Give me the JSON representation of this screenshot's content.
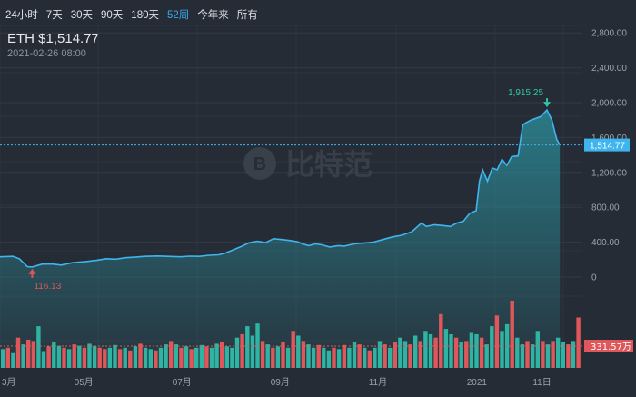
{
  "tabs": [
    {
      "label": "24小时",
      "active": false
    },
    {
      "label": "7天",
      "active": false
    },
    {
      "label": "30天",
      "active": false
    },
    {
      "label": "90天",
      "active": false
    },
    {
      "label": "180天",
      "active": false
    },
    {
      "label": "52周",
      "active": true
    },
    {
      "label": "今年来",
      "active": false
    },
    {
      "label": "所有",
      "active": false
    }
  ],
  "header": {
    "symbol": "ETH $1,514.77",
    "timestamp": "2021-02-26 08:00"
  },
  "watermark": {
    "text": "比特范",
    "icon": "bitcoin-logo-icon"
  },
  "colors": {
    "background": "#262c35",
    "line": "#3fb5f0",
    "area": "#2a8a98",
    "volume_up": "#2fb3a3",
    "volume_down": "#e0575b",
    "current_price_badge": "#3fb5f0",
    "current_volume_badge": "#e0575b",
    "max_annotation": "#2fc7a6",
    "min_annotation": "#e0575b"
  },
  "chart_data": {
    "type": "area",
    "y_ticks": [
      "2,800.00",
      "2,400.00",
      "2,000.00",
      "1,600.00",
      "1,200.00",
      "800.00",
      "400.00",
      "0"
    ],
    "ylim": [
      -400,
      2800
    ],
    "x_ticks": [
      {
        "label": "3月",
        "day": 0
      },
      {
        "label": "05月",
        "day": 45
      },
      {
        "label": "07月",
        "day": 106
      },
      {
        "label": "09月",
        "day": 167
      },
      {
        "label": "11月",
        "day": 228
      },
      {
        "label": "2021",
        "day": 289
      },
      {
        "label": "11日",
        "day": 330
      }
    ],
    "x_range": [
      0,
      362
    ],
    "price_points": [
      [
        0,
        232
      ],
      [
        8,
        238
      ],
      [
        12,
        210
      ],
      [
        17,
        120
      ],
      [
        20,
        116.13
      ],
      [
        26,
        148
      ],
      [
        32,
        150
      ],
      [
        38,
        138
      ],
      [
        45,
        165
      ],
      [
        52,
        175
      ],
      [
        60,
        192
      ],
      [
        66,
        210
      ],
      [
        72,
        205
      ],
      [
        78,
        222
      ],
      [
        84,
        228
      ],
      [
        90,
        238
      ],
      [
        98,
        242
      ],
      [
        106,
        236
      ],
      [
        112,
        232
      ],
      [
        118,
        240
      ],
      [
        124,
        238
      ],
      [
        130,
        250
      ],
      [
        136,
        255
      ],
      [
        140,
        275
      ],
      [
        146,
        320
      ],
      [
        150,
        350
      ],
      [
        155,
        395
      ],
      [
        160,
        410
      ],
      [
        165,
        395
      ],
      [
        170,
        440
      ],
      [
        175,
        430
      ],
      [
        180,
        420
      ],
      [
        185,
        405
      ],
      [
        188,
        380
      ],
      [
        192,
        360
      ],
      [
        196,
        380
      ],
      [
        200,
        370
      ],
      [
        205,
        345
      ],
      [
        210,
        360
      ],
      [
        214,
        355
      ],
      [
        220,
        380
      ],
      [
        226,
        390
      ],
      [
        232,
        400
      ],
      [
        238,
        430
      ],
      [
        244,
        460
      ],
      [
        250,
        480
      ],
      [
        256,
        520
      ],
      [
        262,
        620
      ],
      [
        265,
        580
      ],
      [
        270,
        600
      ],
      [
        276,
        590
      ],
      [
        280,
        580
      ],
      [
        284,
        620
      ],
      [
        288,
        640
      ],
      [
        292,
        730
      ],
      [
        296,
        760
      ],
      [
        298,
        1100
      ],
      [
        300,
        1230
      ],
      [
        303,
        1100
      ],
      [
        306,
        1250
      ],
      [
        309,
        1230
      ],
      [
        312,
        1350
      ],
      [
        315,
        1280
      ],
      [
        318,
        1380
      ],
      [
        322,
        1390
      ],
      [
        325,
        1750
      ],
      [
        330,
        1800
      ],
      [
        336,
        1840
      ],
      [
        340,
        1915.25
      ],
      [
        343,
        1800
      ],
      [
        346,
        1580
      ],
      [
        348,
        1514.77
      ]
    ],
    "volume_bars": [
      [
        0.28,
        1
      ],
      [
        0.3,
        0
      ],
      [
        0.22,
        1
      ],
      [
        0.45,
        0
      ],
      [
        0.35,
        1
      ],
      [
        0.42,
        0
      ],
      [
        0.4,
        0
      ],
      [
        0.62,
        1
      ],
      [
        0.25,
        1
      ],
      [
        0.32,
        0
      ],
      [
        0.38,
        1
      ],
      [
        0.33,
        1
      ],
      [
        0.3,
        0
      ],
      [
        0.28,
        1
      ],
      [
        0.35,
        0
      ],
      [
        0.33,
        1
      ],
      [
        0.3,
        0
      ],
      [
        0.36,
        1
      ],
      [
        0.32,
        1
      ],
      [
        0.3,
        0
      ],
      [
        0.28,
        0
      ],
      [
        0.3,
        1
      ],
      [
        0.34,
        1
      ],
      [
        0.28,
        0
      ],
      [
        0.3,
        1
      ],
      [
        0.26,
        0
      ],
      [
        0.32,
        1
      ],
      [
        0.36,
        0
      ],
      [
        0.3,
        1
      ],
      [
        0.28,
        1
      ],
      [
        0.26,
        0
      ],
      [
        0.3,
        1
      ],
      [
        0.35,
        1
      ],
      [
        0.4,
        0
      ],
      [
        0.35,
        1
      ],
      [
        0.3,
        0
      ],
      [
        0.32,
        1
      ],
      [
        0.28,
        0
      ],
      [
        0.3,
        1
      ],
      [
        0.34,
        1
      ],
      [
        0.32,
        0
      ],
      [
        0.3,
        1
      ],
      [
        0.36,
        1
      ],
      [
        0.38,
        0
      ],
      [
        0.32,
        1
      ],
      [
        0.3,
        1
      ],
      [
        0.45,
        1
      ],
      [
        0.5,
        0
      ],
      [
        0.62,
        1
      ],
      [
        0.48,
        1
      ],
      [
        0.66,
        1
      ],
      [
        0.4,
        0
      ],
      [
        0.35,
        1
      ],
      [
        0.3,
        0
      ],
      [
        0.32,
        1
      ],
      [
        0.38,
        0
      ],
      [
        0.3,
        1
      ],
      [
        0.55,
        0
      ],
      [
        0.48,
        1
      ],
      [
        0.4,
        0
      ],
      [
        0.35,
        1
      ],
      [
        0.3,
        1
      ],
      [
        0.34,
        0
      ],
      [
        0.3,
        1
      ],
      [
        0.26,
        1
      ],
      [
        0.3,
        0
      ],
      [
        0.28,
        1
      ],
      [
        0.34,
        0
      ],
      [
        0.3,
        1
      ],
      [
        0.38,
        1
      ],
      [
        0.35,
        0
      ],
      [
        0.3,
        1
      ],
      [
        0.26,
        0
      ],
      [
        0.3,
        1
      ],
      [
        0.4,
        1
      ],
      [
        0.35,
        0
      ],
      [
        0.3,
        1
      ],
      [
        0.38,
        0
      ],
      [
        0.45,
        1
      ],
      [
        0.4,
        1
      ],
      [
        0.35,
        0
      ],
      [
        0.48,
        1
      ],
      [
        0.4,
        0
      ],
      [
        0.55,
        1
      ],
      [
        0.5,
        1
      ],
      [
        0.45,
        0
      ],
      [
        0.8,
        0
      ],
      [
        0.58,
        1
      ],
      [
        0.5,
        1
      ],
      [
        0.45,
        0
      ],
      [
        0.38,
        1
      ],
      [
        0.4,
        0
      ],
      [
        0.52,
        1
      ],
      [
        0.5,
        1
      ],
      [
        0.45,
        0
      ],
      [
        0.35,
        1
      ],
      [
        0.62,
        1
      ],
      [
        0.78,
        0
      ],
      [
        0.55,
        1
      ],
      [
        0.65,
        1
      ],
      [
        1.0,
        0
      ],
      [
        0.45,
        1
      ],
      [
        0.35,
        1
      ],
      [
        0.4,
        0
      ],
      [
        0.35,
        1
      ],
      [
        0.55,
        1
      ],
      [
        0.4,
        0
      ],
      [
        0.35,
        1
      ],
      [
        0.4,
        0
      ],
      [
        0.45,
        1
      ],
      [
        0.38,
        1
      ],
      [
        0.35,
        0
      ],
      [
        0.4,
        1
      ],
      [
        0.75,
        0
      ]
    ],
    "max_label": "1,915.25",
    "min_label": "116.13",
    "current_price_label": "1,514.77",
    "current_volume_label": "331.57万"
  }
}
